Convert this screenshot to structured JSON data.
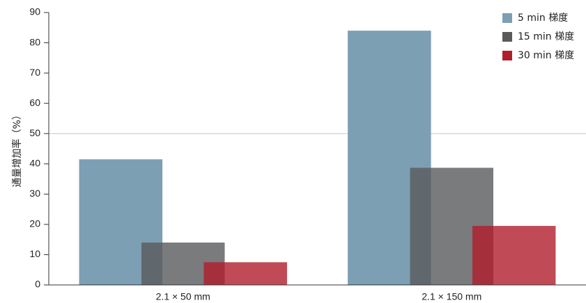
{
  "chart_data": {
    "type": "bar",
    "ylabel": "通量增加率（%）",
    "ylim": [
      0,
      90
    ],
    "yticks": [
      0,
      10,
      20,
      30,
      40,
      50,
      60,
      70,
      80,
      90
    ],
    "reference_line": 50,
    "categories": [
      "2.1 × 50 mm",
      "2.1 × 150 mm"
    ],
    "series": [
      {
        "name": "5 min 梯度",
        "color": "#7c9fb4",
        "values": [
          41.5,
          84
        ]
      },
      {
        "name": "15 min 梯度",
        "color": "#595a5c",
        "values": [
          14,
          38.7
        ]
      },
      {
        "name": "30 min 梯度",
        "color": "#b01e2c",
        "values": [
          7.5,
          19.5
        ]
      }
    ],
    "legend_position": "top-right",
    "bars_overlap": true
  }
}
